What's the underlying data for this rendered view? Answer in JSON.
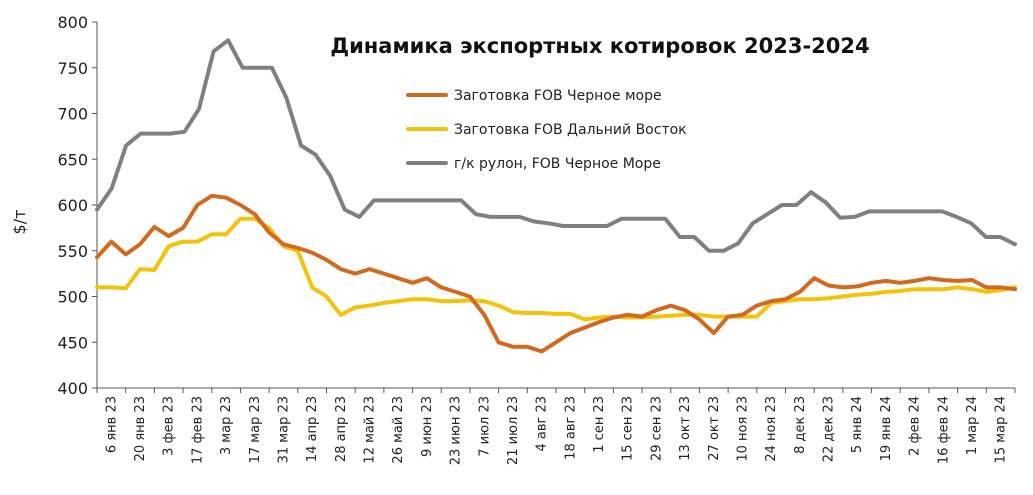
{
  "chart_data": {
    "type": "line",
    "title": "Динамика экспортных котировок 2023-2024",
    "ylabel": "$/т",
    "ylim": [
      400,
      800
    ],
    "yticks": [
      400,
      450,
      500,
      550,
      600,
      650,
      700,
      750,
      800
    ],
    "x_labels": [
      "6 янв 23",
      "20 янв 23",
      "3 фев 23",
      "17 фев 23",
      "3 мар 23",
      "17 мар 23",
      "31 мар 23",
      "14 апр 23",
      "28 апр 23",
      "12 май 23",
      "26 май 23",
      "9 июн 23",
      "23 июн 23",
      "7 июл 23",
      "21 июл 23",
      "4 авг 23",
      "18 авг 23",
      "1 сен 23",
      "15 сен 23",
      "29 сен 23",
      "13 окт 23",
      "27 окт 23",
      "10 ноя 23",
      "24 ноя 23",
      "8 дек 23",
      "22 дек 23",
      "5 янв 24",
      "19 янв 24",
      "2 фев 24",
      "16 фев 24",
      "1 мар 24",
      "15 мар 24"
    ],
    "legend_position": "top-center",
    "series": [
      {
        "name": "Заготовка FOB Черное море",
        "color": "#d2691e",
        "values": [
          543,
          560,
          546,
          557,
          576,
          566,
          575,
          600,
          610,
          608,
          600,
          590,
          570,
          557,
          553,
          548,
          540,
          530,
          525,
          530,
          525,
          520,
          515,
          520,
          510,
          505,
          500,
          480,
          450,
          445,
          445,
          440,
          450,
          460,
          466,
          472,
          477,
          480,
          478,
          485,
          490,
          485,
          475,
          460,
          478,
          480,
          490,
          495,
          497,
          505,
          520,
          512,
          510,
          511,
          515,
          517,
          515,
          517,
          520,
          518,
          517,
          518,
          510,
          510,
          508
        ]
      },
      {
        "name": "Заготовка FOB Дальний Восток",
        "color": "#f5c20a",
        "values": [
          510,
          510,
          509,
          530,
          529,
          555,
          560,
          560,
          568,
          568,
          585,
          585,
          575,
          555,
          550,
          510,
          500,
          480,
          488,
          490,
          493,
          495,
          497,
          497,
          495,
          495,
          496,
          495,
          490,
          483,
          482,
          482,
          481,
          481,
          475,
          477,
          478,
          477,
          477,
          478,
          479,
          480,
          480,
          478,
          478,
          478,
          478,
          493,
          495,
          497,
          497,
          498,
          500,
          502,
          503,
          505,
          506,
          508,
          508,
          508,
          510,
          508,
          505,
          507,
          510
        ]
      },
      {
        "name": "г/к рулон, FOB Черное Море",
        "color": "#808080",
        "values": [
          595,
          618,
          665,
          678,
          678,
          678,
          680,
          705,
          768,
          780,
          750,
          750,
          750,
          717,
          665,
          655,
          632,
          595,
          587,
          605,
          605,
          605,
          605,
          605,
          605,
          605,
          590,
          587,
          587,
          587,
          582,
          580,
          577,
          577,
          577,
          577,
          585,
          585,
          585,
          585,
          565,
          565,
          550,
          550,
          558,
          580,
          590,
          600,
          600,
          614,
          603,
          586,
          587,
          593,
          593,
          593,
          593,
          593,
          593,
          587,
          580,
          565,
          565,
          557
        ]
      }
    ]
  }
}
